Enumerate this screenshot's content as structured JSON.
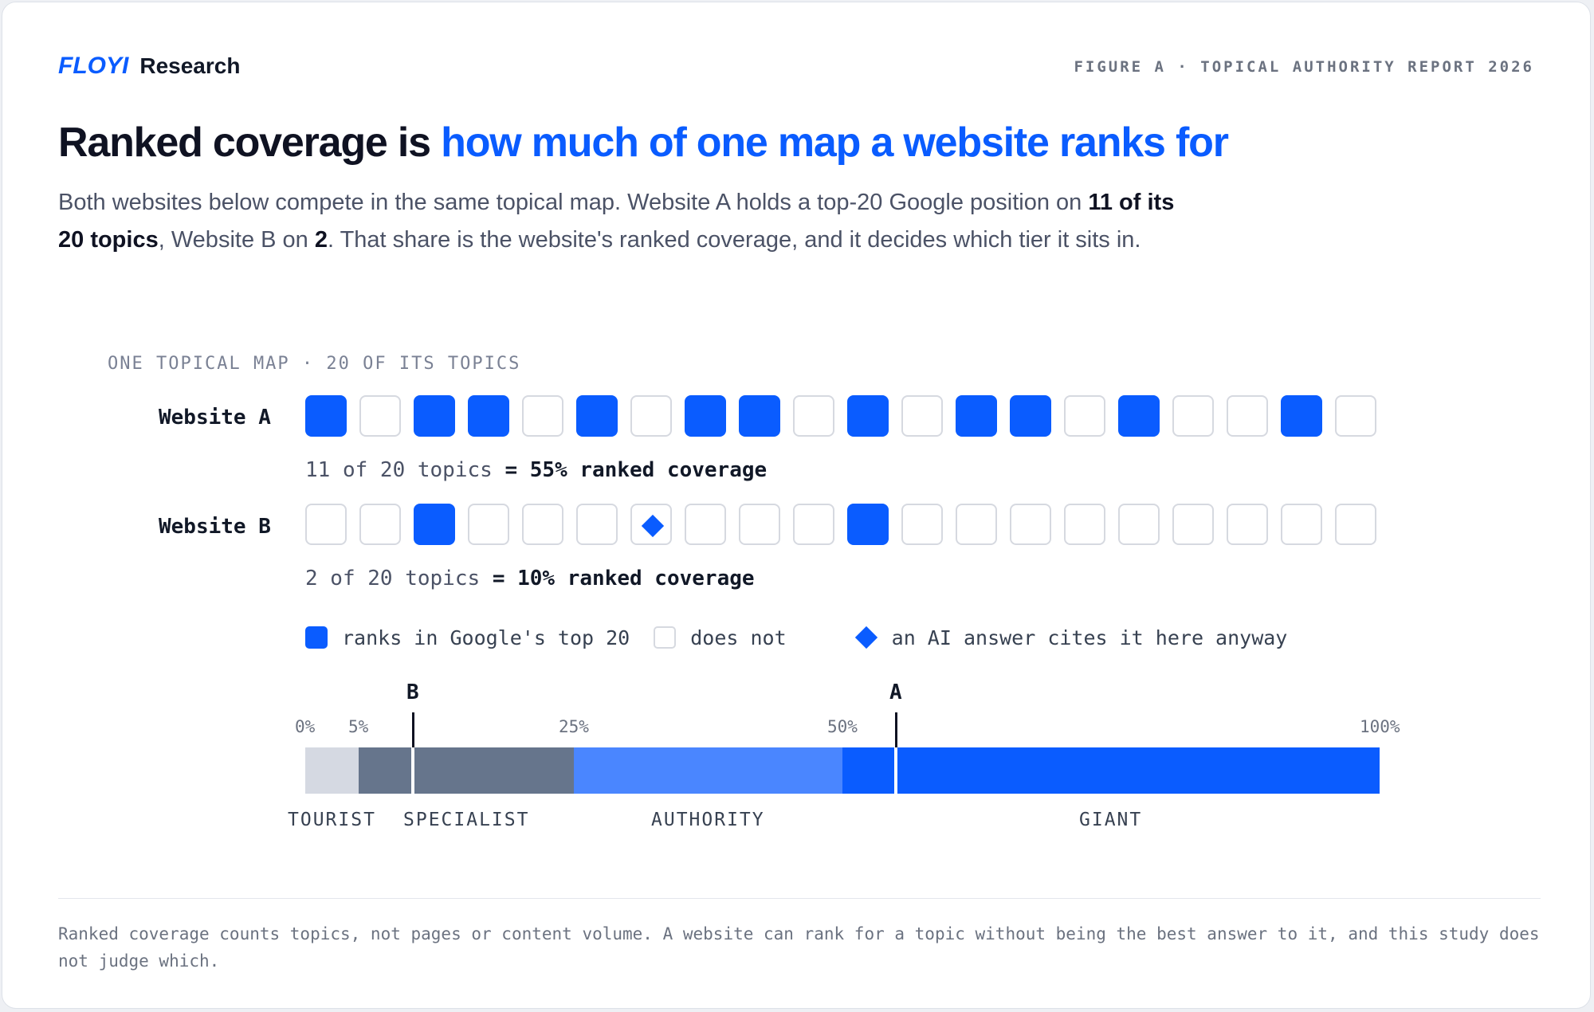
{
  "brand": {
    "logo": "FLOYI",
    "name": "Research"
  },
  "figure_label": "FIGURE A · TOPICAL AUTHORITY REPORT 2026",
  "headline": {
    "lead": "Ranked coverage is ",
    "accent": "how much of one map a website ranks for"
  },
  "intro": {
    "p1": "Both websites below compete in the same topical map. Website A holds a top-20 Google position on ",
    "b1": "11 of its 20 topics",
    "p2": ", Website B on ",
    "b2": "2",
    "p3": ". That share is the website's ranked coverage, and it decides which tier it sits in."
  },
  "map_label": "ONE TOPICAL MAP · 20 OF ITS TOPICS",
  "websites": [
    {
      "label": "Website A",
      "cells": [
        1,
        0,
        1,
        1,
        0,
        1,
        0,
        1,
        1,
        0,
        1,
        0,
        1,
        1,
        0,
        1,
        0,
        0,
        1,
        0
      ],
      "ai_cited": [],
      "caption_plain": "11 of 20 topics ",
      "caption_bold": "= 55% ranked coverage",
      "coverage_pct": 55
    },
    {
      "label": "Website B",
      "cells": [
        0,
        0,
        1,
        0,
        0,
        0,
        0,
        0,
        0,
        0,
        1,
        0,
        0,
        0,
        0,
        0,
        0,
        0,
        0,
        0
      ],
      "ai_cited": [
        6
      ],
      "caption_plain": "2 of 20 topics ",
      "caption_bold": "= 10% ranked coverage",
      "coverage_pct": 10
    }
  ],
  "legend": {
    "ranks": "ranks in Google's top 20",
    "not": "does not",
    "ai": "an AI answer cites it here anyway"
  },
  "scale": {
    "ticks": [
      {
        "pct": 0,
        "label": "0%"
      },
      {
        "pct": 5,
        "label": "5%"
      },
      {
        "pct": 25,
        "label": "25%"
      },
      {
        "pct": 50,
        "label": "50%"
      },
      {
        "pct": 100,
        "label": "100%"
      }
    ],
    "tiers": [
      {
        "name": "TOURIST",
        "from": 0,
        "to": 5,
        "color": "#d5d9e2"
      },
      {
        "name": "SPECIALIST",
        "from": 5,
        "to": 25,
        "color": "#66758c"
      },
      {
        "name": "AUTHORITY",
        "from": 25,
        "to": 50,
        "color": "#4a86ff"
      },
      {
        "name": "GIANT",
        "from": 50,
        "to": 100,
        "color": "#0a5cff"
      }
    ],
    "markers": [
      {
        "letter": "B",
        "pct": 10
      },
      {
        "letter": "A",
        "pct": 55
      }
    ]
  },
  "footnote": "Ranked coverage counts topics, not pages or content volume. A website can rank for a topic without being the best answer to it, and this study does not judge which."
}
